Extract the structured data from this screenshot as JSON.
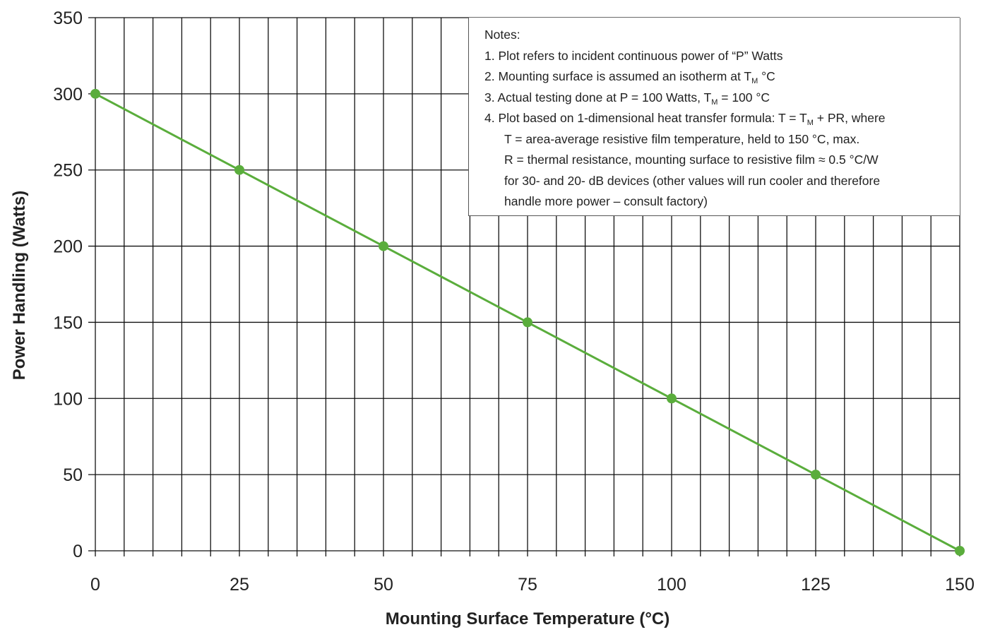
{
  "chart_data": {
    "type": "line",
    "title": "",
    "xlabel": "Mounting Surface Temperature (°C)",
    "ylabel": "Power Handling (Watts)",
    "xlim": [
      0,
      150
    ],
    "ylim": [
      0,
      350
    ],
    "x_ticks": [
      0,
      25,
      50,
      75,
      100,
      125,
      150
    ],
    "y_ticks": [
      0,
      50,
      100,
      150,
      200,
      250,
      300,
      350
    ],
    "minor_grid_x_step": 5,
    "grid": true,
    "series": [
      {
        "color": "#5aad3c",
        "x": [
          0,
          25,
          50,
          75,
          100,
          125,
          150
        ],
        "y": [
          300,
          250,
          200,
          150,
          100,
          50,
          0
        ]
      }
    ]
  },
  "notes": {
    "heading": "Notes:",
    "n1": "1. Plot refers to incident continuous power of “P” Watts",
    "n2_pre": "2. Mounting surface is assumed an isotherm at T",
    "n2_sub": "M",
    "n2_post": " °C",
    "n3_pre": "3. Actual testing done at P = 100 Watts, T",
    "n3_sub": "M",
    "n3_post": " = 100 °C",
    "n4_pre": "4. Plot based on 1-dimensional heat transfer formula: T = T",
    "n4_sub": "M",
    "n4_post": " + PR, where",
    "n4_t": "T = area-average resistive film temperature, held to 150 °C, max.",
    "n4_r": "R = thermal resistance, mounting surface to resistive film ≈ 0.5 °C/W",
    "n4_r2": "for 30- and 20- dB devices (other values will run cooler and therefore",
    "n4_r3": "handle more power – consult factory)"
  }
}
